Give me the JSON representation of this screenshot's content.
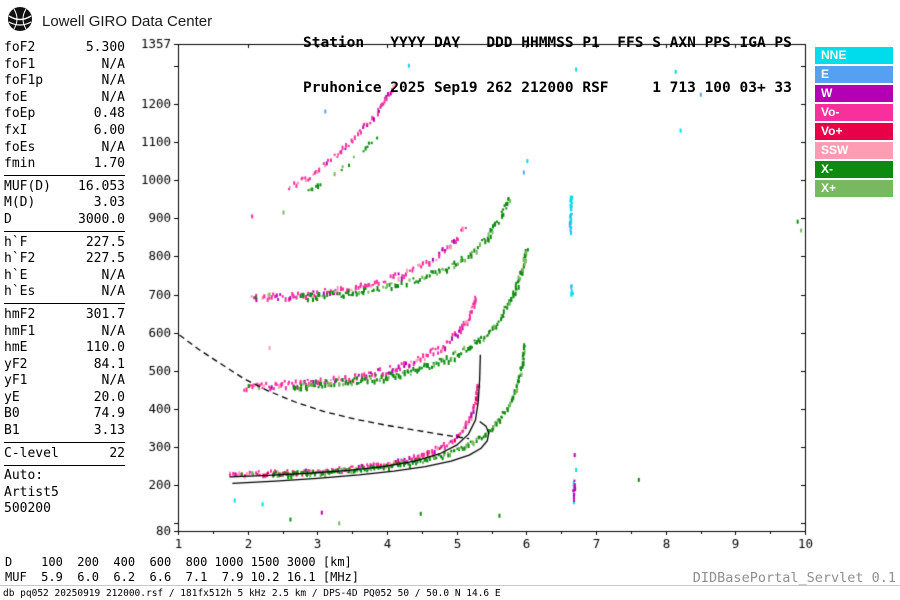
{
  "brand": {
    "title": "Lowell GIRO Data Center"
  },
  "header": {
    "line1": "Station   YYYY DAY   DDD HHMMSS P1  FFS S AXN PPS IGA PS",
    "line2": "Pruhonice 2025 Sep19 262 212000 RSF     1 713 100 03+ 33"
  },
  "params": {
    "groups": [
      {
        "rows": [
          [
            "foF2",
            "5.300"
          ],
          [
            "foF1",
            "N/A"
          ],
          [
            "foF1p",
            "N/A"
          ],
          [
            "foE",
            "N/A"
          ],
          [
            "foEp",
            "0.48"
          ],
          [
            "fxI",
            "6.00"
          ],
          [
            "foEs",
            "N/A"
          ],
          [
            "fmin",
            "1.70"
          ]
        ]
      },
      {
        "rows": [
          [
            "MUF(D)",
            "16.053"
          ],
          [
            "M(D)",
            "3.03"
          ],
          [
            "D",
            "3000.0"
          ]
        ]
      },
      {
        "rows": [
          [
            "h`F",
            "227.5"
          ],
          [
            "h`F2",
            "227.5"
          ],
          [
            "h`E",
            "N/A"
          ],
          [
            "h`Es",
            "N/A"
          ]
        ]
      },
      {
        "rows": [
          [
            "hmF2",
            "301.7"
          ],
          [
            "hmF1",
            "N/A"
          ],
          [
            "hmE",
            "110.0"
          ],
          [
            "yF2",
            "84.1"
          ],
          [
            "yF1",
            "N/A"
          ],
          [
            "yE",
            "20.0"
          ],
          [
            "B0",
            "74.9"
          ],
          [
            "B1",
            "3.13"
          ]
        ]
      },
      {
        "rows": [
          [
            "C-level",
            "22"
          ]
        ]
      }
    ],
    "auto_lines": [
      "Auto:",
      "Artist5",
      "500200"
    ]
  },
  "legend": {
    "items": [
      {
        "label": "NNE",
        "color": "#00dcec"
      },
      {
        "label": "E",
        "color": "#55a0f0"
      },
      {
        "label": "W",
        "color": "#b400b4"
      },
      {
        "label": "Vo-",
        "color": "#f8309c"
      },
      {
        "label": "Vo+",
        "color": "#e80048"
      },
      {
        "label": "SSW",
        "color": "#ff9cb4"
      },
      {
        "label": "X-",
        "color": "#0e8a0e"
      },
      {
        "label": "X+",
        "color": "#78b860"
      }
    ]
  },
  "chart_data": {
    "type": "scatter",
    "title": "Digisonde ionogram, Pruhonice 2025 Sep19 262 212000",
    "xlabel": "[MHz]",
    "ylabel": "[km]",
    "x_axis": {
      "unit": "MHz",
      "min": 1,
      "max": 10,
      "major_ticks": [
        1,
        2,
        3,
        4,
        5,
        6,
        7,
        8,
        9,
        10
      ]
    },
    "y_axis": {
      "unit": "km",
      "min": 80,
      "max": 1357,
      "ticks": [
        [
          80,
          "80"
        ],
        [
          100,
          ""
        ],
        [
          200,
          "200"
        ],
        [
          300,
          "300"
        ],
        [
          400,
          "400"
        ],
        [
          500,
          "500"
        ],
        [
          600,
          "600"
        ],
        [
          700,
          "700"
        ],
        [
          800,
          "800"
        ],
        [
          900,
          "900"
        ],
        [
          1000,
          "1000"
        ],
        [
          1100,
          "1100"
        ],
        [
          1200,
          "1200"
        ],
        [
          1300,
          ""
        ],
        [
          1357,
          "1357"
        ]
      ]
    },
    "colors": {
      "NNE": "#00dcec",
      "E": "#55a0f0",
      "W": "#b400b4",
      "Vo-": "#f8309c",
      "Vo+": "#e80048",
      "SSW": "#ff9cb4",
      "X-": "#0e8a0e",
      "X+": "#78b860"
    },
    "echo_traces": [
      {
        "name": "F-1st-hop-O",
        "palette": [
          "Vo-",
          "W",
          "SSW",
          "Vo+"
        ],
        "spread_km": 6,
        "points": [
          [
            1.72,
            227
          ],
          [
            2.1,
            229
          ],
          [
            2.6,
            232
          ],
          [
            3.1,
            236
          ],
          [
            3.55,
            243
          ],
          [
            3.95,
            253
          ],
          [
            4.3,
            266
          ],
          [
            4.6,
            284
          ],
          [
            4.85,
            307
          ],
          [
            5.05,
            337
          ],
          [
            5.18,
            374
          ],
          [
            5.26,
            418
          ],
          [
            5.3,
            468
          ]
        ]
      },
      {
        "name": "F-1st-hop-X",
        "palette": [
          "X-",
          "X+"
        ],
        "spread_km": 6,
        "points": [
          [
            2.35,
            227
          ],
          [
            2.9,
            231
          ],
          [
            3.45,
            237
          ],
          [
            3.95,
            246
          ],
          [
            4.4,
            259
          ],
          [
            4.8,
            277
          ],
          [
            5.1,
            299
          ],
          [
            5.35,
            326
          ],
          [
            5.55,
            358
          ],
          [
            5.72,
            400
          ],
          [
            5.85,
            452
          ],
          [
            5.93,
            516
          ],
          [
            5.97,
            566
          ]
        ]
      },
      {
        "name": "F-2nd-hop-O",
        "palette": [
          "Vo-",
          "W",
          "SSW"
        ],
        "spread_km": 9,
        "points": [
          [
            1.95,
            456
          ],
          [
            2.4,
            461
          ],
          [
            2.9,
            467
          ],
          [
            3.35,
            476
          ],
          [
            3.8,
            491
          ],
          [
            4.2,
            511
          ],
          [
            4.55,
            537
          ],
          [
            4.82,
            567
          ],
          [
            5.02,
            601
          ],
          [
            5.18,
            646
          ],
          [
            5.27,
            693
          ]
        ]
      },
      {
        "name": "F-2nd-hop-X",
        "palette": [
          "X-",
          "X+"
        ],
        "spread_km": 9,
        "points": [
          [
            2.65,
            459
          ],
          [
            3.2,
            466
          ],
          [
            3.75,
            477
          ],
          [
            4.25,
            493
          ],
          [
            4.7,
            516
          ],
          [
            5.05,
            546
          ],
          [
            5.35,
            583
          ],
          [
            5.6,
            631
          ],
          [
            5.78,
            689
          ],
          [
            5.92,
            756
          ],
          [
            6.0,
            826
          ]
        ]
      },
      {
        "name": "F-3rd-hop-O",
        "palette": [
          "Vo-",
          "SSW",
          "W"
        ],
        "spread_km": 8,
        "gap": 0.15,
        "points": [
          [
            2.05,
            689
          ],
          [
            2.5,
            694
          ],
          [
            3.0,
            702
          ],
          [
            3.5,
            715
          ],
          [
            3.95,
            734
          ],
          [
            4.35,
            761
          ],
          [
            4.7,
            796
          ],
          [
            4.95,
            839
          ],
          [
            5.12,
            881
          ]
        ]
      },
      {
        "name": "F-3rd-hop-X",
        "palette": [
          "X-",
          "X+"
        ],
        "spread_km": 8,
        "gap": 0.15,
        "points": [
          [
            2.75,
            691
          ],
          [
            3.3,
            699
          ],
          [
            3.85,
            713
          ],
          [
            4.35,
            733
          ],
          [
            4.8,
            761
          ],
          [
            5.15,
            798
          ],
          [
            5.42,
            846
          ],
          [
            5.62,
            901
          ],
          [
            5.75,
            956
          ]
        ]
      },
      {
        "name": "F-4th-hop-O",
        "palette": [
          "Vo-",
          "SSW",
          "W"
        ],
        "spread_km": 7,
        "gap": 0.2,
        "points": [
          [
            2.55,
            972
          ],
          [
            2.85,
            1006
          ],
          [
            3.12,
            1043
          ],
          [
            3.38,
            1083
          ],
          [
            3.6,
            1123
          ],
          [
            3.8,
            1166
          ],
          [
            3.97,
            1211
          ],
          [
            4.1,
            1249
          ]
        ]
      },
      {
        "name": "F-4th-hop-X",
        "palette": [
          "X-",
          "X+"
        ],
        "spread_km": 6,
        "gap": 0.55,
        "points": [
          [
            2.8,
            962
          ],
          [
            3.1,
            996
          ],
          [
            3.4,
            1036
          ],
          [
            3.65,
            1076
          ],
          [
            3.85,
            1116
          ]
        ]
      },
      {
        "name": "spread-column-cyan",
        "palette": [
          "NNE",
          "E"
        ],
        "spread_km": 6,
        "points": [
          [
            6.62,
            862
          ],
          [
            6.63,
            962
          ]
        ]
      },
      {
        "name": "spread-column-purple",
        "palette": [
          "W",
          "NNE"
        ],
        "spread_km": 5,
        "gap": 0.2,
        "points": [
          [
            6.67,
            152
          ],
          [
            6.68,
            212
          ]
        ]
      },
      {
        "name": "spread-column-cyan-mid",
        "palette": [
          "NNE"
        ],
        "spread_km": 4,
        "gap": 0.3,
        "points": [
          [
            6.64,
            700
          ],
          [
            6.64,
            726
          ]
        ]
      }
    ],
    "overlay_curves": [
      {
        "name": "muf-transmission-curve",
        "style": "dashed",
        "points": [
          [
            1.02,
            594
          ],
          [
            1.3,
            556
          ],
          [
            1.6,
            520
          ],
          [
            1.95,
            479
          ],
          [
            2.3,
            447
          ],
          [
            2.7,
            417
          ],
          [
            3.1,
            393
          ],
          [
            3.55,
            373
          ],
          [
            4.0,
            357
          ],
          [
            4.45,
            343
          ],
          [
            4.85,
            331
          ],
          [
            5.18,
            322
          ]
        ]
      },
      {
        "name": "artist-trace-fit",
        "style": "solid",
        "points": [
          [
            1.75,
            222
          ],
          [
            2.3,
            226
          ],
          [
            2.9,
            232
          ],
          [
            3.45,
            239
          ],
          [
            3.95,
            249
          ],
          [
            4.4,
            263
          ],
          [
            4.75,
            282
          ],
          [
            5.0,
            305
          ],
          [
            5.17,
            334
          ],
          [
            5.27,
            371
          ],
          [
            5.31,
            419
          ],
          [
            5.33,
            478
          ],
          [
            5.34,
            542
          ]
        ]
      },
      {
        "name": "artist-hook-curve",
        "style": "solid",
        "points": [
          [
            1.78,
            205
          ],
          [
            2.4,
            211
          ],
          [
            3.0,
            218
          ],
          [
            3.6,
            227
          ],
          [
            4.1,
            237
          ],
          [
            4.55,
            249
          ],
          [
            4.92,
            263
          ],
          [
            5.18,
            279
          ],
          [
            5.35,
            297
          ],
          [
            5.44,
            317
          ],
          [
            5.46,
            337
          ],
          [
            5.42,
            355
          ],
          [
            5.33,
            367
          ]
        ]
      }
    ],
    "noise_points": [
      [
        6.7,
        1290,
        "NNE"
      ],
      [
        8.13,
        1284,
        "NNE"
      ],
      [
        8.49,
        1224,
        "E"
      ],
      [
        8.2,
        1130,
        "NNE"
      ],
      [
        6.7,
        240,
        "NNE"
      ],
      [
        6.68,
        279,
        "W"
      ],
      [
        6.63,
        720,
        "E"
      ],
      [
        9.88,
        891,
        "X-"
      ],
      [
        9.93,
        868,
        "X+"
      ],
      [
        2.6,
        110,
        "X-"
      ],
      [
        3.3,
        100,
        "X+"
      ],
      [
        4.47,
        125,
        "X-"
      ],
      [
        2.2,
        150,
        "NNE"
      ],
      [
        3.05,
        128,
        "W"
      ],
      [
        1.8,
        160,
        "NNE"
      ],
      [
        5.6,
        120,
        "X-"
      ],
      [
        7.6,
        214,
        "X-"
      ],
      [
        2.3,
        560,
        "SSW"
      ],
      [
        2.05,
        905,
        "Vo-"
      ],
      [
        2.5,
        915,
        "X+"
      ],
      [
        3.1,
        1180,
        "E"
      ],
      [
        4.3,
        1300,
        "NNE"
      ],
      [
        6.0,
        1050,
        "NNE"
      ],
      [
        5.95,
        1020,
        "E"
      ],
      [
        2.1,
        692,
        "X-"
      ],
      [
        2.3,
        700,
        "X+"
      ],
      [
        2.0,
        460,
        "X-"
      ],
      [
        2.15,
        455,
        "X+"
      ],
      [
        1.9,
        228,
        "X-"
      ],
      [
        2.05,
        232,
        "X+"
      ]
    ]
  },
  "distance_table": {
    "rows": [
      {
        "label": "D",
        "values": [
          "100",
          "200",
          "400",
          "600",
          "800",
          "1000",
          "1500",
          "3000"
        ],
        "unit": "[km]"
      },
      {
        "label": "MUF",
        "values": [
          "5.9",
          "6.0",
          "6.2",
          "6.6",
          "7.1",
          "7.9",
          "10.2",
          "16.1"
        ],
        "unit": "[MHz]"
      }
    ]
  },
  "footer": {
    "status": "db pq052 20250919 212000.rsf / 181fx512h 5 kHz 2.5 km / DPS-4D PQ052 50 / 50.0 N 14.6 E",
    "servlet": "DIDBasePortal_Servlet 0.1"
  }
}
